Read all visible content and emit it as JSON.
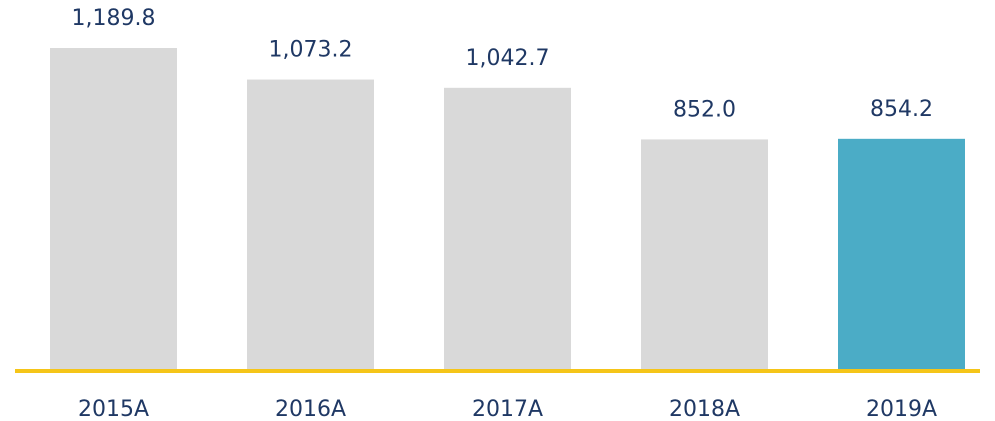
{
  "chart_data": {
    "type": "bar",
    "categories": [
      "2015A",
      "2016A",
      "2017A",
      "2018A",
      "2019A"
    ],
    "values": [
      1189.8,
      1073.2,
      1042.7,
      852.0,
      854.2
    ],
    "value_labels": [
      "1,189.8",
      "1,073.2",
      "1,042.7",
      "852.0",
      "854.2"
    ],
    "colors": [
      "#d9d9d9",
      "#d9d9d9",
      "#d9d9d9",
      "#d9d9d9",
      "#4bacc6"
    ],
    "axis_color": "#f5c518"
  }
}
